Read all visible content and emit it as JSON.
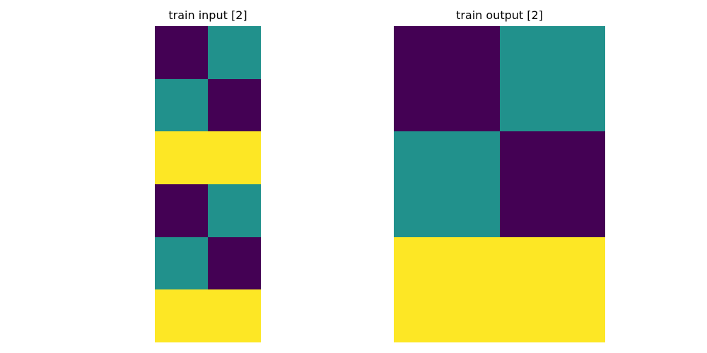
{
  "colors": {
    "0": "#440154",
    "1": "#21918c",
    "2": "#fde725"
  },
  "chart_data": [
    {
      "type": "heatmap",
      "title": "train input [2]",
      "rows": 6,
      "cols": 2,
      "values": [
        [
          0,
          1
        ],
        [
          1,
          0
        ],
        [
          2,
          2
        ],
        [
          0,
          1
        ],
        [
          1,
          0
        ],
        [
          2,
          2
        ]
      ],
      "grid": false,
      "axes": false
    },
    {
      "type": "heatmap",
      "title": "train output [2]",
      "rows": 3,
      "cols": 2,
      "values": [
        [
          0,
          1
        ],
        [
          1,
          0
        ],
        [
          2,
          2
        ]
      ],
      "grid": false,
      "axes": false
    }
  ]
}
